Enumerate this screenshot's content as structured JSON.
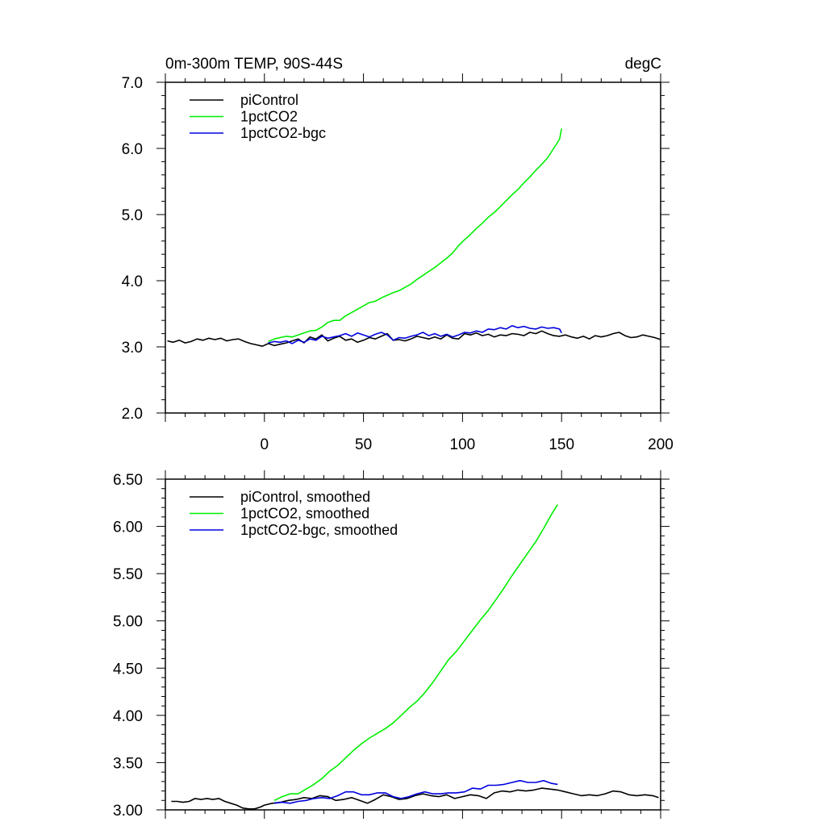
{
  "colors": {
    "piControl": "#000000",
    "1pctCO2": "#00ee00",
    "1pctCO2-bgc": "#0000dd"
  },
  "chart_data": [
    {
      "type": "line",
      "title": "0m-300m TEMP, 90S-44S",
      "units": "degC",
      "xlim": [
        -50,
        200
      ],
      "ylim": [
        2.0,
        7.0
      ],
      "xticks": [
        "0",
        "50",
        "100",
        "150",
        "200"
      ],
      "yticks": [
        "2.0",
        "3.0",
        "4.0",
        "5.0",
        "6.0",
        "7.0"
      ],
      "legend_position": "top-left",
      "series": [
        {
          "name": "piControl",
          "color": "#000000",
          "x": [
            -49,
            -46,
            -43,
            -40,
            -37,
            -34,
            -31,
            -28,
            -25,
            -22,
            -19,
            -16,
            -13,
            -10,
            -7,
            -4,
            -1,
            2,
            5,
            8,
            11,
            14,
            17,
            20,
            23,
            26,
            29,
            32,
            35,
            38,
            41,
            44,
            47,
            50,
            53,
            56,
            59,
            62,
            65,
            68,
            71,
            74,
            77,
            80,
            83,
            86,
            89,
            92,
            95,
            98,
            101,
            104,
            107,
            110,
            113,
            116,
            119,
            122,
            125,
            128,
            131,
            134,
            137,
            140,
            143,
            146,
            149,
            152,
            155,
            158,
            161,
            164,
            167,
            170,
            173,
            176,
            179,
            182,
            185,
            188,
            191,
            194,
            197,
            200
          ],
          "y": [
            3.09,
            3.07,
            3.1,
            3.06,
            3.08,
            3.12,
            3.1,
            3.13,
            3.11,
            3.13,
            3.09,
            3.11,
            3.12,
            3.08,
            3.05,
            3.03,
            3.01,
            3.05,
            3.02,
            3.04,
            3.06,
            3.09,
            3.12,
            3.06,
            3.15,
            3.12,
            3.18,
            3.09,
            3.13,
            3.16,
            3.1,
            3.12,
            3.07,
            3.1,
            3.14,
            3.12,
            3.16,
            3.2,
            3.1,
            3.11,
            3.09,
            3.12,
            3.16,
            3.14,
            3.12,
            3.15,
            3.12,
            3.18,
            3.13,
            3.12,
            3.2,
            3.18,
            3.21,
            3.17,
            3.19,
            3.15,
            3.18,
            3.17,
            3.2,
            3.19,
            3.17,
            3.22,
            3.2,
            3.24,
            3.2,
            3.17,
            3.16,
            3.18,
            3.15,
            3.13,
            3.16,
            3.12,
            3.17,
            3.15,
            3.17,
            3.2,
            3.22,
            3.17,
            3.14,
            3.15,
            3.18,
            3.16,
            3.14,
            3.11
          ]
        },
        {
          "name": "1pctCO2",
          "color": "#00ee00",
          "x": [
            2,
            5,
            8,
            11,
            14,
            17,
            20,
            23,
            26,
            29,
            32,
            35,
            38,
            41,
            44,
            47,
            50,
            53,
            56,
            59,
            62,
            65,
            68,
            71,
            74,
            77,
            80,
            83,
            86,
            89,
            92,
            95,
            98,
            101,
            104,
            107,
            110,
            113,
            116,
            119,
            122,
            125,
            128,
            131,
            134,
            137,
            140,
            143,
            146,
            149,
            150
          ],
          "y": [
            3.08,
            3.12,
            3.14,
            3.16,
            3.15,
            3.18,
            3.21,
            3.24,
            3.25,
            3.3,
            3.37,
            3.4,
            3.4,
            3.47,
            3.52,
            3.57,
            3.62,
            3.67,
            3.69,
            3.74,
            3.78,
            3.82,
            3.85,
            3.9,
            3.95,
            4.02,
            4.08,
            4.14,
            4.2,
            4.27,
            4.34,
            4.42,
            4.53,
            4.62,
            4.7,
            4.79,
            4.87,
            4.96,
            5.03,
            5.12,
            5.21,
            5.3,
            5.38,
            5.48,
            5.57,
            5.67,
            5.76,
            5.86,
            6.0,
            6.14,
            6.3
          ]
        },
        {
          "name": "1pctCO2-bgc",
          "color": "#0000dd",
          "x": [
            2,
            5,
            8,
            11,
            14,
            17,
            20,
            23,
            26,
            29,
            32,
            35,
            38,
            41,
            44,
            47,
            50,
            53,
            56,
            59,
            62,
            65,
            68,
            71,
            74,
            77,
            80,
            83,
            86,
            89,
            92,
            95,
            98,
            101,
            104,
            107,
            110,
            113,
            116,
            119,
            122,
            125,
            128,
            131,
            134,
            137,
            140,
            143,
            146,
            149,
            150
          ],
          "y": [
            3.06,
            3.08,
            3.07,
            3.09,
            3.05,
            3.1,
            3.07,
            3.12,
            3.1,
            3.16,
            3.13,
            3.15,
            3.17,
            3.2,
            3.16,
            3.21,
            3.18,
            3.15,
            3.19,
            3.22,
            3.18,
            3.1,
            3.14,
            3.13,
            3.16,
            3.18,
            3.22,
            3.17,
            3.2,
            3.16,
            3.19,
            3.15,
            3.18,
            3.22,
            3.21,
            3.24,
            3.22,
            3.27,
            3.26,
            3.29,
            3.27,
            3.32,
            3.29,
            3.31,
            3.28,
            3.27,
            3.3,
            3.28,
            3.29,
            3.27,
            3.21
          ]
        }
      ]
    },
    {
      "type": "line",
      "title": "",
      "units": "",
      "xlim": [
        -50,
        200
      ],
      "ylim": [
        3.0,
        6.5
      ],
      "xticks": [],
      "yticks": [
        "3.00",
        "3.50",
        "4.00",
        "4.50",
        "5.00",
        "5.50",
        "6.00",
        "6.50"
      ],
      "legend_position": "top-left",
      "series": [
        {
          "name": "piControl, smoothed",
          "color": "#000000",
          "x": [
            -47,
            -44,
            -41,
            -38,
            -35,
            -32,
            -29,
            -26,
            -23,
            -20,
            -17,
            -14,
            -11,
            -8,
            -5,
            -2,
            0,
            4,
            8,
            12,
            16,
            20,
            24,
            28,
            32,
            36,
            40,
            44,
            48,
            52,
            56,
            60,
            64,
            68,
            72,
            76,
            80,
            84,
            88,
            92,
            96,
            100,
            104,
            108,
            112,
            116,
            120,
            124,
            128,
            132,
            136,
            140,
            144,
            148,
            152,
            156,
            160,
            164,
            168,
            172,
            176,
            180,
            184,
            188,
            192,
            196,
            199
          ],
          "y": [
            3.09,
            3.09,
            3.08,
            3.09,
            3.12,
            3.11,
            3.12,
            3.11,
            3.12,
            3.09,
            3.07,
            3.05,
            3.02,
            3.01,
            3.01,
            3.03,
            3.05,
            3.07,
            3.08,
            3.1,
            3.11,
            3.13,
            3.12,
            3.15,
            3.14,
            3.1,
            3.11,
            3.13,
            3.1,
            3.07,
            3.11,
            3.16,
            3.14,
            3.11,
            3.12,
            3.15,
            3.17,
            3.15,
            3.14,
            3.16,
            3.12,
            3.14,
            3.16,
            3.15,
            3.12,
            3.18,
            3.2,
            3.19,
            3.21,
            3.2,
            3.21,
            3.23,
            3.22,
            3.21,
            3.19,
            3.17,
            3.15,
            3.16,
            3.15,
            3.17,
            3.2,
            3.19,
            3.16,
            3.15,
            3.16,
            3.15,
            3.13
          ]
        },
        {
          "name": "1pctCO2, smoothed",
          "color": "#00ee00",
          "x": [
            5,
            9,
            13,
            17,
            21,
            25,
            29,
            33,
            37,
            41,
            45,
            49,
            53,
            57,
            61,
            65,
            69,
            73,
            77,
            81,
            85,
            89,
            93,
            97,
            101,
            105,
            109,
            113,
            117,
            121,
            125,
            129,
            133,
            137,
            141,
            145,
            148
          ],
          "y": [
            3.1,
            3.14,
            3.17,
            3.17,
            3.22,
            3.27,
            3.33,
            3.41,
            3.47,
            3.55,
            3.63,
            3.7,
            3.76,
            3.81,
            3.86,
            3.92,
            4.0,
            4.08,
            4.15,
            4.24,
            4.35,
            4.47,
            4.59,
            4.68,
            4.79,
            4.9,
            5.01,
            5.11,
            5.23,
            5.35,
            5.48,
            5.6,
            5.72,
            5.84,
            5.98,
            6.13,
            6.23
          ]
        },
        {
          "name": "1pctCO2-bgc, smoothed",
          "color": "#0000dd",
          "x": [
            5,
            9,
            13,
            17,
            21,
            25,
            29,
            33,
            37,
            41,
            45,
            49,
            53,
            57,
            61,
            65,
            69,
            73,
            77,
            81,
            85,
            89,
            93,
            97,
            101,
            105,
            109,
            113,
            117,
            121,
            125,
            129,
            133,
            137,
            141,
            145,
            148
          ],
          "y": [
            3.07,
            3.08,
            3.07,
            3.09,
            3.1,
            3.12,
            3.13,
            3.12,
            3.15,
            3.19,
            3.19,
            3.16,
            3.16,
            3.18,
            3.18,
            3.14,
            3.12,
            3.14,
            3.17,
            3.19,
            3.17,
            3.17,
            3.18,
            3.18,
            3.19,
            3.23,
            3.22,
            3.26,
            3.26,
            3.27,
            3.29,
            3.31,
            3.29,
            3.29,
            3.31,
            3.28,
            3.27
          ]
        }
      ]
    }
  ]
}
